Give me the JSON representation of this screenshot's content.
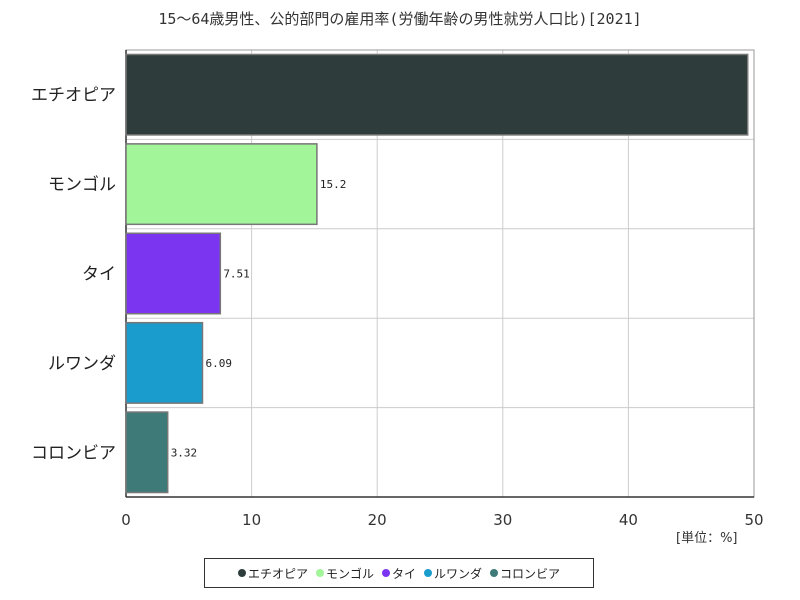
{
  "title": "15～64歳男性、公的部門の雇用率(労働年齢の男性就労人口比)[2021]",
  "unit_label": "[単位：%]",
  "chart_data": {
    "type": "bar",
    "orientation": "horizontal",
    "title": "15～64歳男性、公的部門の雇用率(労働年齢の男性就労人口比)[2021]",
    "categories": [
      "エチオピア",
      "モンゴル",
      "タイ",
      "ルワンダ",
      "コロンビア"
    ],
    "values": [
      49.5,
      15.2,
      7.51,
      6.09,
      3.32
    ],
    "value_labels": [
      "",
      "15.2",
      "7.51",
      "6.09",
      "3.32"
    ],
    "colors": [
      "#2e3d3b",
      "#a3f59a",
      "#7b35f0",
      "#1a9ccc",
      "#3d7a78"
    ],
    "xlim": [
      0,
      50
    ],
    "xticks": [
      "0",
      "10",
      "20",
      "30",
      "40",
      "50"
    ],
    "grid": true,
    "legend_position": "bottom"
  },
  "legend": [
    {
      "label": "エチオピア",
      "color": "#2e3d3b"
    },
    {
      "label": "モンゴル",
      "color": "#a3f59a"
    },
    {
      "label": "タイ",
      "color": "#7b35f0"
    },
    {
      "label": "ルワンダ",
      "color": "#1a9ccc"
    },
    {
      "label": "コロンビア",
      "color": "#3d7a78"
    }
  ]
}
